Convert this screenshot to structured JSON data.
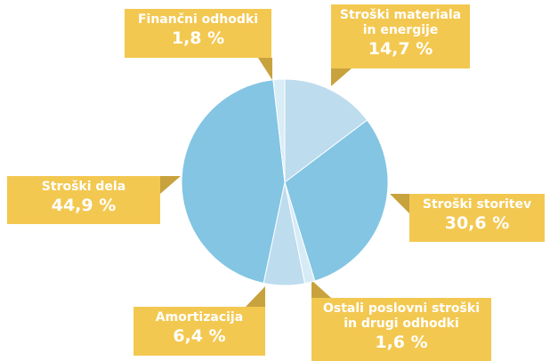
{
  "chart_data": {
    "type": "pie",
    "categories": [
      "Stroški materiala in energije",
      "Stroški storitev",
      "Ostali poslovni stroški in drugi odhodki",
      "Amortizacija",
      "Stroški dela",
      "Finančni odhodki"
    ],
    "values": [
      14.7,
      30.6,
      1.6,
      6.4,
      44.9,
      1.8
    ],
    "value_labels": [
      "14,7 %",
      "30,6 %",
      "1,6 %",
      "6,4 %",
      "44,9 %",
      "1,8 %"
    ],
    "colors": [
      "#bddcee",
      "#83c5e3",
      "#d6ebf6",
      "#bddcee",
      "#83c5e3",
      "#d9edf7"
    ]
  }
}
